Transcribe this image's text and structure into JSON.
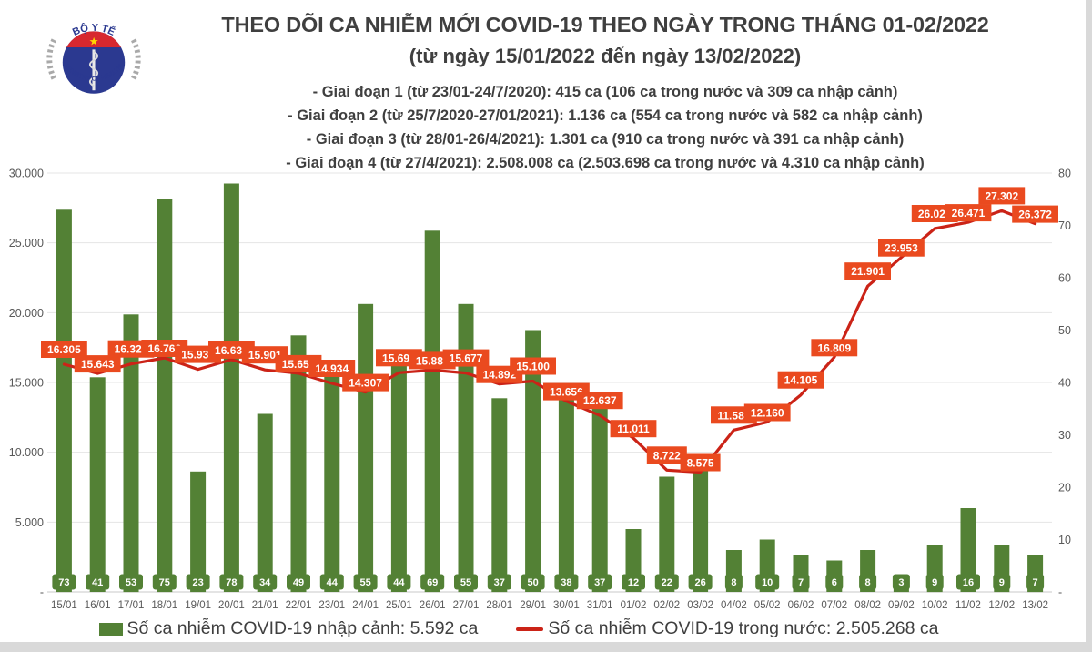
{
  "header": {
    "title_line1": "THEO DÕI CA NHIỄM MỚI COVID-19 THEO NGÀY TRONG THÁNG 01-02/2022",
    "title_line2": "(từ ngày 15/01/2022 đến ngày 13/02/2022)",
    "phases": [
      "- Giai đoạn 1 (từ 23/01-24/7/2020): 415 ca (106 ca trong nước và 309 ca nhập cảnh)",
      "- Giai đoạn 2 (từ 25/7/2020-27/01/2021): 1.136 ca (554 ca trong nước và 582 ca nhập cảnh)",
      "- Giai đoạn 3 (từ 28/01-26/4/2021): 1.301 ca (910 ca trong nước và 391 ca nhập cảnh)",
      "- Giai đoạn 4 (từ 27/4/2021): 2.508.008 ca (2.503.698 ca trong nước và 4.310 ca nhập cảnh)"
    ],
    "logo": {
      "top_text": "BỘ Y TẾ",
      "bottom_text": "MINISTRY OF HEALTH"
    }
  },
  "legend": {
    "imported_label": "Số ca nhiễm COVID-19 nhập cảnh: 5.592 ca",
    "domestic_label": "Số ca nhiễm COVID-19 trong nước: 2.505.268 ca"
  },
  "colors": {
    "bar_green": "#538135",
    "line_red": "#cb2317",
    "label_box_orange": "#ea4a1f",
    "title_text": "#3f3f3f",
    "axis_text": "#595959",
    "gridline": "#e4e4e4",
    "baseline": "#c8c8c8",
    "logo_navy": "#2b3990",
    "logo_red": "#d7282f",
    "logo_star_yellow": "#ffd700"
  },
  "chart_data": {
    "type": "bar+line combo",
    "categories": [
      "15/01",
      "16/01",
      "17/01",
      "18/01",
      "19/01",
      "20/01",
      "21/01",
      "22/01",
      "23/01",
      "24/01",
      "25/01",
      "26/01",
      "27/01",
      "28/01",
      "29/01",
      "30/01",
      "31/01",
      "01/02",
      "02/02",
      "03/02",
      "04/02",
      "05/02",
      "06/02",
      "07/02",
      "08/02",
      "09/02",
      "10/02",
      "11/02",
      "12/02",
      "13/02"
    ],
    "series": [
      {
        "name": "Số ca nhiễm COVID-19 nhập cảnh",
        "type": "bar",
        "axis": "right",
        "values": [
          73,
          41,
          53,
          75,
          23,
          78,
          34,
          49,
          44,
          55,
          44,
          69,
          55,
          37,
          50,
          38,
          37,
          12,
          22,
          26,
          8,
          10,
          7,
          6,
          8,
          3,
          9,
          16,
          9,
          7
        ]
      },
      {
        "name": "Số ca nhiễm COVID-19 trong nước",
        "type": "line",
        "axis": "left",
        "values": [
          16305,
          15643,
          16325,
          16763,
          15936,
          16637,
          15901,
          15658,
          14934,
          14307,
          15699,
          15885,
          15677,
          14892,
          15100,
          13656,
          12637,
          11011,
          8722,
          8575,
          11586,
          12160,
          14105,
          16809,
          21901,
          23953,
          26023,
          26471,
          27302,
          26372
        ],
        "labels": [
          "16.305",
          "15.643",
          "16.325",
          "16.763",
          "15.936",
          "16.637",
          "15.901",
          "15.658",
          "14.934",
          "14.307",
          "15.699",
          "15.885",
          "15.677",
          "14.892",
          "15.100",
          "13.656",
          "12.637",
          "11.011",
          "8.722",
          "8.575",
          "11.586",
          "12.160",
          "14.105",
          "16.809",
          "21.901",
          "23.953",
          "26.023",
          "26.471",
          "27.302",
          "26.372"
        ]
      }
    ],
    "left_axis": {
      "ticks": [
        "30.000",
        "25.000",
        "20.000",
        "15.000",
        "10.000",
        "5.000",
        "-"
      ],
      "max": 30000,
      "min": 0
    },
    "right_axis": {
      "ticks": [
        "80",
        "70",
        "60",
        "50",
        "40",
        "30",
        "20",
        "10",
        "-"
      ],
      "max": 80,
      "min": 0
    },
    "grid": "horizontal, on primary (left) axis steps",
    "legend_position": "bottom"
  }
}
